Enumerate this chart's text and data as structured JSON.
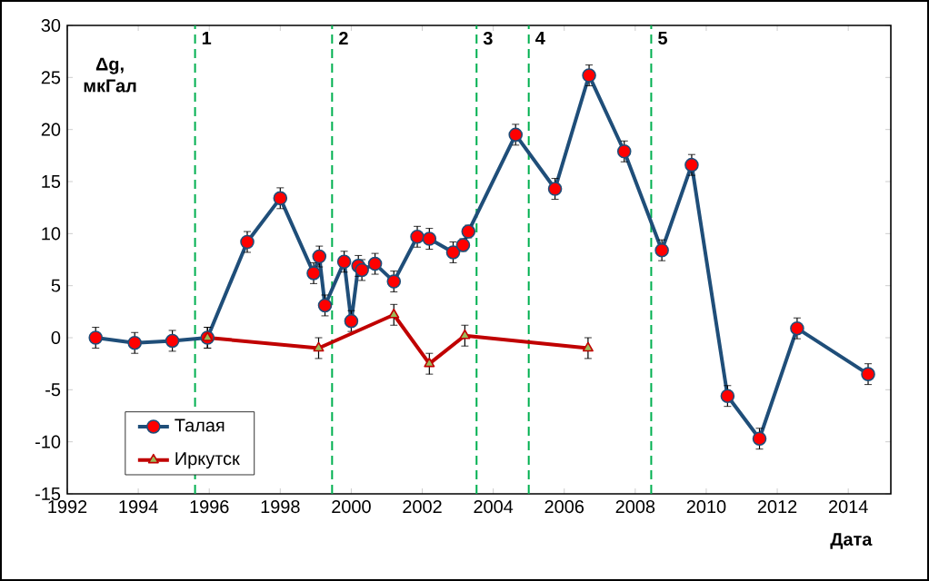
{
  "chart_data": {
    "type": "line",
    "xlabel": "Дата",
    "ylabel": "Δg, мкГал",
    "xlim": [
      1992,
      2015.2
    ],
    "ylim": [
      -15,
      30
    ],
    "xticks": [
      1992,
      1994,
      1996,
      1998,
      2000,
      2002,
      2004,
      2006,
      2008,
      2010,
      2012,
      2014
    ],
    "yticks": [
      -15,
      -10,
      -5,
      0,
      5,
      10,
      15,
      20,
      25,
      30
    ],
    "grid": false,
    "legend": "bottom left",
    "line_style": "solid",
    "series": [
      {
        "name": "Талая",
        "color": "#1f4e79",
        "marker": "circle",
        "x": [
          1992.8,
          1993.9,
          1994.96,
          1995.95,
          1997.07,
          1998.0,
          1998.94,
          1999.1,
          1999.26,
          1999.8,
          2000.0,
          2000.2,
          2000.3,
          2000.67,
          2001.2,
          2001.86,
          2002.2,
          2002.87,
          2003.15,
          2003.3,
          2004.63,
          2005.74,
          2006.7,
          2007.69,
          2008.75,
          2009.59,
          2010.6,
          2011.5,
          2012.56,
          2014.56
        ],
        "values": [
          0,
          -0.5,
          -0.3,
          0,
          9.2,
          13.4,
          6.2,
          7.8,
          3.1,
          7.3,
          1.6,
          6.9,
          6.5,
          7.1,
          5.4,
          9.7,
          9.5,
          8.2,
          8.9,
          10.2,
          19.5,
          14.3,
          25.2,
          17.9,
          8.4,
          16.6,
          -5.6,
          -9.7,
          0.9,
          -3.5
        ],
        "errors": [
          1,
          1,
          1,
          1,
          1,
          1,
          1,
          1,
          1,
          1,
          1,
          1,
          1,
          1,
          1,
          1,
          1,
          1,
          0.6,
          0.6,
          1,
          1,
          1,
          1,
          1,
          1,
          1,
          1,
          1,
          1
        ]
      },
      {
        "name": "Иркутск",
        "color": "#c00000",
        "marker": "triangle",
        "x": [
          1995.95,
          1999.08,
          2001.2,
          2002.2,
          2003.2,
          2006.67
        ],
        "values": [
          0,
          -1.0,
          2.2,
          -2.5,
          0.2,
          -1.0
        ],
        "errors": [
          1,
          1,
          1,
          1,
          1,
          1
        ]
      }
    ],
    "ref_lines": [
      {
        "axis": "x",
        "value": 1995.6,
        "color": "#00b050",
        "line_style": "dashed"
      },
      {
        "axis": "x",
        "value": 1999.46,
        "color": "#00b050",
        "line_style": "dashed"
      },
      {
        "axis": "x",
        "value": 2003.53,
        "color": "#00b050",
        "line_style": "dashed"
      },
      {
        "axis": "x",
        "value": 2005.0,
        "color": "#00b050",
        "line_style": "dashed"
      },
      {
        "axis": "x",
        "value": 2008.45,
        "color": "#00b050",
        "line_style": "dashed"
      }
    ],
    "annotations": [
      {
        "text": "1",
        "x": 1995.6,
        "y": 30
      },
      {
        "text": "2",
        "x": 1999.46,
        "y": 30
      },
      {
        "text": "3",
        "x": 2003.53,
        "y": 30
      },
      {
        "text": "4",
        "x": 2005.0,
        "y": 30
      },
      {
        "text": "5",
        "x": 2008.45,
        "y": 30
      }
    ]
  }
}
